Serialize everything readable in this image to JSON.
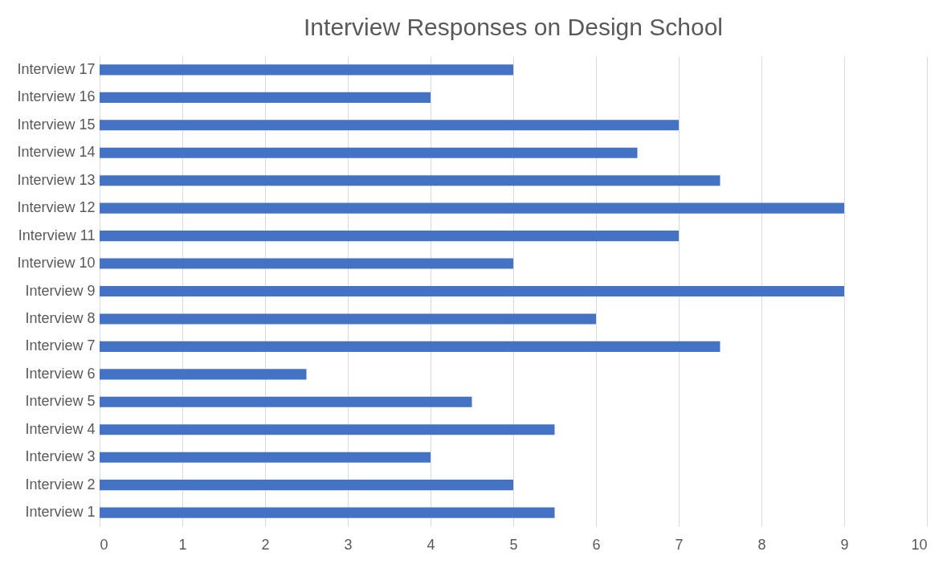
{
  "chart_data": {
    "type": "bar",
    "orientation": "horizontal",
    "title": "Interview Responses on Design School",
    "categories": [
      "Interview 17",
      "Interview 16",
      "Interview 15",
      "Interview 14",
      "Interview 13",
      "Interview 12",
      "Interview 11",
      "Interview 10",
      "Interview 9",
      "Interview 8",
      "Interview 7",
      "Interview 6",
      "Interview 5",
      "Interview 4",
      "Interview 3",
      "Interview 2",
      "Interview 1"
    ],
    "values": [
      5,
      4,
      7,
      6.5,
      7.5,
      9,
      7,
      5,
      9,
      6,
      7.5,
      2.5,
      4.5,
      5.5,
      4,
      5,
      5.5
    ],
    "color": "#4472c4",
    "xlim": [
      0,
      10
    ],
    "xticks": [
      0,
      1,
      2,
      3,
      4,
      5,
      6,
      7,
      8,
      9,
      10
    ],
    "grid": "x"
  }
}
